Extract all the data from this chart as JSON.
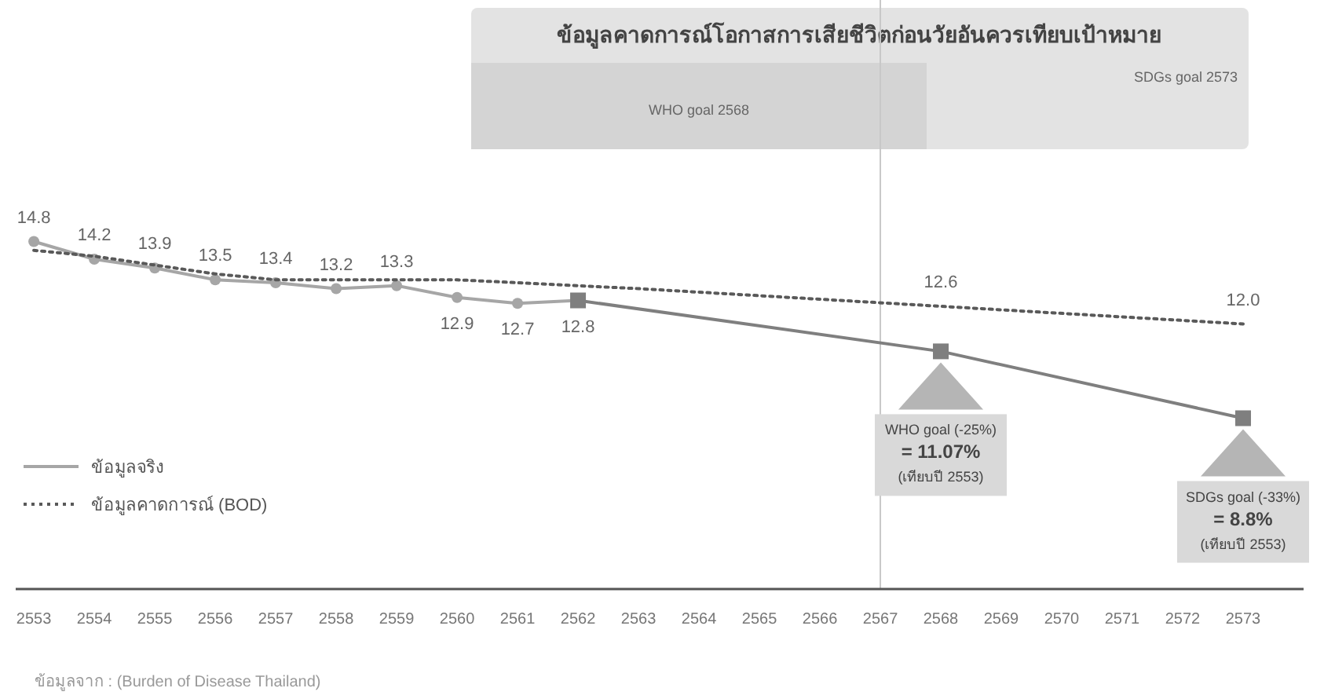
{
  "chart_data": {
    "type": "line",
    "title": "ข้อมูลคาดการณ์โอกาสการเสียชีวิตก่อนวัยอันควรเทียบเป้าหมาย",
    "xlim": [
      2552.7,
      2574
    ],
    "xticks": [
      2553,
      2554,
      2555,
      2556,
      2557,
      2558,
      2559,
      2560,
      2561,
      2562,
      2563,
      2564,
      2565,
      2566,
      2567,
      2568,
      2569,
      2570,
      2571,
      2572,
      2573
    ],
    "ylim": [
      3,
      23
    ],
    "tick_labels": "x",
    "grid": false,
    "legend": "bottom left",
    "series": [
      {
        "name": "ข้อมูลจริง",
        "color": "#a6a6a6",
        "marker": "circle",
        "line_style": "solid",
        "x": [
          2553,
          2554,
          2555,
          2556,
          2557,
          2558,
          2559,
          2560,
          2561,
          2562
        ],
        "values": [
          14.8,
          14.2,
          13.9,
          13.5,
          13.4,
          13.2,
          13.3,
          12.9,
          12.7,
          12.8
        ],
        "value_labels": [
          "14.8",
          "14.2",
          "13.9",
          "13.5",
          "13.4",
          "13.2",
          "13.3",
          "12.9",
          "12.7",
          "12.8"
        ]
      },
      {
        "name": "ข้อมูลคาดการณ์ (BOD)",
        "color": "#595959",
        "marker": "none",
        "line_style": "dotted",
        "x": [
          2553,
          2554,
          2555,
          2556,
          2557,
          2558,
          2559,
          2560,
          2561,
          2562,
          2563,
          2568,
          2573
        ],
        "values": [
          14.5,
          14.3,
          14.0,
          13.7,
          13.5,
          13.5,
          13.5,
          13.5,
          13.4,
          13.3,
          13.2,
          12.6,
          12.0
        ],
        "value_labels": [
          null,
          null,
          null,
          null,
          null,
          null,
          null,
          null,
          null,
          null,
          null,
          "12.6",
          "12.0"
        ]
      },
      {
        "color": "#7f7f7f",
        "marker": "square",
        "line_style": "solid",
        "x": [
          2562,
          2568,
          2573
        ],
        "values": [
          12.8,
          11.07,
          8.8
        ]
      }
    ],
    "ref_lines": [
      {
        "axis": "x",
        "value": 2567,
        "color": "#c8c8c8"
      }
    ],
    "annotations": [
      "SDGs goal 2573",
      "WHO goal 2568",
      "WHO goal (-25%)\n= 11.07%\n(เทียบปี 2553)",
      "SDGs goal (-33%)\n= 8.8%\n(เทียบปี 2553)",
      "ข้อมูลจาก : (Burden of Disease Thailand)"
    ]
  }
}
